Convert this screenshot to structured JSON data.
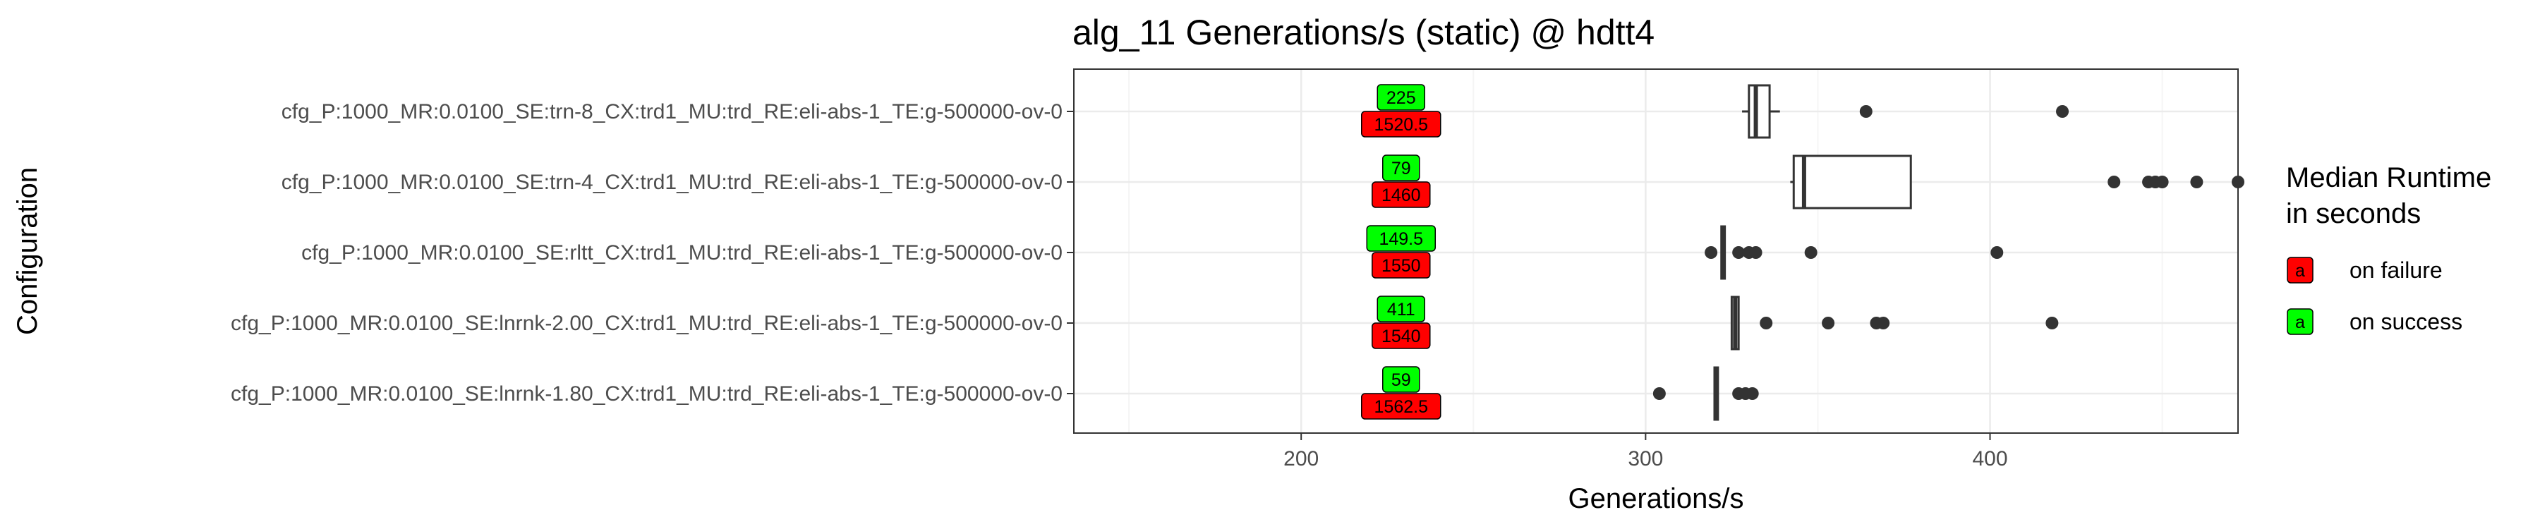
{
  "chart_data": {
    "type": "boxplot",
    "title": "alg_11 Generations/s (static) @ hdtt4",
    "xlabel": "Generations/s",
    "ylabel": "Configuration",
    "xlim": [
      134,
      472
    ],
    "xticks": [
      200,
      300,
      400
    ],
    "grid": true,
    "legend": {
      "title": "Median Runtime\nin seconds",
      "position": "right",
      "entries": [
        {
          "key": "failure",
          "symbol": "a",
          "label": "on failure",
          "color": "#ff0000"
        },
        {
          "key": "success",
          "symbol": "a",
          "label": "on success",
          "color": "#00ff00"
        }
      ]
    },
    "configurations": [
      {
        "name": "cfg_P:1000_MR:0.0100_SE:trn-8_CX:trd1_MU:trd_RE:eli-abs-1_TE:g-500000-ov-0",
        "box": {
          "whisker_low": 328,
          "q1": 330,
          "median": 332,
          "q3": 336,
          "whisker_high": 339
        },
        "outliers": [
          364,
          421
        ],
        "success_runtime": "225",
        "failure_runtime": "1520.5"
      },
      {
        "name": "cfg_P:1000_MR:0.0100_SE:trn-4_CX:trd1_MU:trd_RE:eli-abs-1_TE:g-500000-ov-0",
        "box": {
          "whisker_low": 342,
          "q1": 343,
          "median": 346,
          "q3": 377,
          "whisker_high": 377
        },
        "outliers": [
          436,
          446,
          448,
          450,
          460,
          472
        ],
        "success_runtime": "79",
        "failure_runtime": "1460"
      },
      {
        "name": "cfg_P:1000_MR:0.0100_SE:rltt_CX:trd1_MU:trd_RE:eli-abs-1_TE:g-500000-ov-0",
        "box": {
          "whisker_low": 322,
          "q1": 322,
          "median": 322.5,
          "q3": 323,
          "whisker_high": 323
        },
        "outliers": [
          319,
          327,
          330,
          332,
          348,
          402
        ],
        "success_runtime": "149.5",
        "failure_runtime": "1550"
      },
      {
        "name": "cfg_P:1000_MR:0.0100_SE:lnrnk-2.00_CX:trd1_MU:trd_RE:eli-abs-1_TE:g-500000-ov-0",
        "box": {
          "whisker_low": 325,
          "q1": 325,
          "median": 326,
          "q3": 327,
          "whisker_high": 327
        },
        "outliers": [
          335,
          353,
          367,
          369,
          418
        ],
        "success_runtime": "411",
        "failure_runtime": "1540"
      },
      {
        "name": "cfg_P:1000_MR:0.0100_SE:lnrnk-1.80_CX:trd1_MU:trd_RE:eli-abs-1_TE:g-500000-ov-0",
        "box": {
          "whisker_low": 320,
          "q1": 320,
          "median": 320.5,
          "q3": 321,
          "whisker_high": 321
        },
        "outliers": [
          304,
          327,
          329,
          331
        ],
        "success_runtime": "59",
        "failure_runtime": "1562.5"
      }
    ],
    "colors": {
      "panel_border": "#333333",
      "grid_major": "#ebebeb",
      "grid_minor": "#f5f5f5",
      "box": "#333333",
      "success": "#00ff00",
      "failure": "#ff0000",
      "label_position_value": 229
    }
  }
}
